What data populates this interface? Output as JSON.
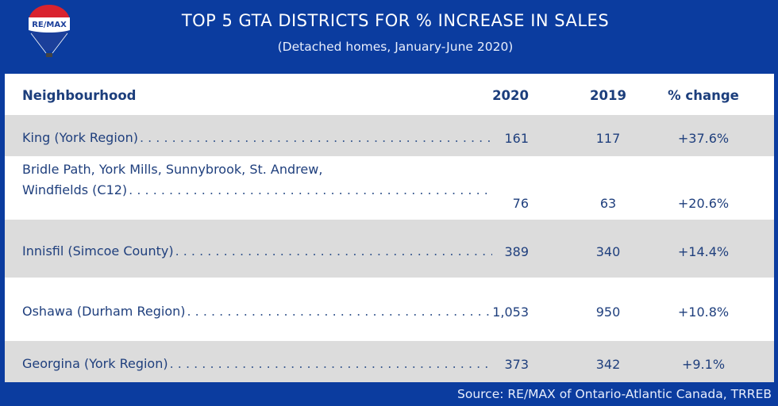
{
  "logo": {
    "text": "RE/MAX",
    "icon": "hot-air-balloon-logo"
  },
  "title": "TOP 5 GTA DISTRICTS FOR % INCREASE IN SALES",
  "subtitle": "(Detached homes, January-June 2020)",
  "source": "Source:  RE/MAX of Ontario-Atlantic Canada, TRREB",
  "colors": {
    "background": "#0b3c9f",
    "text": "#1f3f7d",
    "row_alt": "#dcdcdc"
  },
  "chart_data": {
    "type": "table",
    "title": "TOP 5 GTA DISTRICTS FOR % INCREASE IN SALES",
    "subtitle": "(Detached homes, January-June 2020)",
    "columns": [
      "Neighbourhood",
      "2020",
      "2019",
      "% change"
    ],
    "rows": [
      {
        "name_lines": [
          "King (York Region)"
        ],
        "y2020": "161",
        "y2019": "117",
        "change": "+37.6%"
      },
      {
        "name_lines": [
          "Bridle Path, York Mills, Sunnybrook, St. Andrew,",
          "Windfields (C12)"
        ],
        "y2020": "76",
        "y2019": "63",
        "change": "+20.6%"
      },
      {
        "name_lines": [
          "Innisfil (Simcoe County)"
        ],
        "y2020": "389",
        "y2019": "340",
        "change": "+14.4%"
      },
      {
        "name_lines": [
          "Oshawa (Durham Region)"
        ],
        "y2020": "1,053",
        "y2019": "950",
        "change": "+10.8%"
      },
      {
        "name_lines": [
          "Georgina (York Region)"
        ],
        "y2020": "373",
        "y2019": "342",
        "change": "+9.1%"
      }
    ]
  }
}
